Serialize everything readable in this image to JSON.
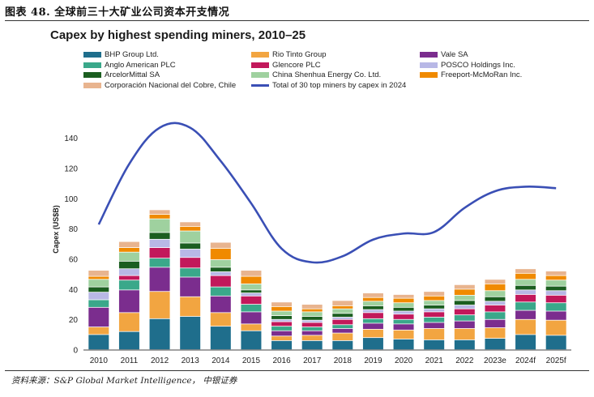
{
  "figure_label": "图表 48. 全球前三十大矿业公司资本开支情况",
  "source_note": "资料来源：S&P Global Market Intelligence， 中银证券",
  "chart_data": {
    "type": "bar",
    "stacked": true,
    "title": "Capex by highest spending miners, 2010–25",
    "xlabel": "",
    "ylabel": "Capex (US$B)",
    "ylim": [
      0,
      150
    ],
    "yticks": [
      0,
      20,
      40,
      60,
      80,
      100,
      120,
      140
    ],
    "grid": false,
    "legend_position": "top",
    "categories": [
      "2010",
      "2011",
      "2012",
      "2013",
      "2014",
      "2015",
      "2016",
      "2017",
      "2018",
      "2019",
      "2020",
      "2021",
      "2022",
      "2023e",
      "2024f",
      "2025f"
    ],
    "series": [
      {
        "name": "BHP Group Ltd.",
        "color": "#1f6e8c",
        "values": [
          10,
          12,
          20.5,
          22,
          15.5,
          12.5,
          6,
          6,
          6,
          8,
          7,
          6.5,
          6.5,
          7.5,
          10,
          9.5
        ]
      },
      {
        "name": "Rio Tinto Group",
        "color": "#f2a541",
        "values": [
          5,
          12.5,
          18,
          13,
          9,
          4.5,
          3,
          3.5,
          5,
          5.5,
          6,
          7.5,
          7.5,
          7,
          10,
          10
        ]
      },
      {
        "name": "Vale SA",
        "color": "#7b2d8e",
        "values": [
          13,
          15,
          16,
          13,
          11,
          8,
          3.5,
          3,
          3,
          4,
          4,
          4,
          5,
          5.5,
          6,
          6
        ]
      },
      {
        "name": "Anglo American PLC",
        "color": "#3aa88a",
        "values": [
          5,
          6.5,
          6,
          6,
          6,
          5,
          3,
          2.5,
          2.5,
          3,
          3,
          3.5,
          4,
          5,
          5.5,
          5.5
        ]
      },
      {
        "name": "Glencore PLC",
        "color": "#c2185b",
        "values": [
          0,
          3,
          7,
          7,
          7.5,
          5.5,
          3,
          3,
          3.5,
          4,
          3.5,
          3.5,
          4,
          4.5,
          5,
          5
        ]
      },
      {
        "name": "POSCO Holdings Inc.",
        "color": "#b8b8e6",
        "values": [
          5,
          4.5,
          5.5,
          5.5,
          2.5,
          2,
          1.5,
          1.5,
          1.5,
          2,
          2,
          2,
          2.5,
          2.5,
          3,
          3
        ]
      },
      {
        "name": "ArcelorMittal SA",
        "color": "#1b5e20",
        "values": [
          3.5,
          5,
          4.5,
          4,
          3,
          2,
          2.5,
          2.5,
          2.5,
          2.5,
          2.5,
          2.5,
          3,
          3,
          3,
          3
        ]
      },
      {
        "name": "China Shenhua Energy Co. Ltd.",
        "color": "#9fd19f",
        "values": [
          5,
          6,
          9,
          8,
          5,
          4,
          3,
          3,
          3,
          3,
          3,
          3,
          3.5,
          4,
          4,
          4
        ]
      },
      {
        "name": "Freeport-McMoRan Inc.",
        "color": "#f08a00",
        "values": [
          2,
          3,
          3,
          3,
          7.5,
          5,
          3,
          2,
          2,
          2.5,
          3,
          3,
          4,
          4.5,
          4,
          3
        ]
      },
      {
        "name": "Corporación Nacional del Cobre, Chile",
        "color": "#e8b48f",
        "values": [
          4,
          4,
          3,
          3,
          4,
          4,
          3,
          3,
          3.5,
          3,
          2.5,
          3,
          3,
          3,
          3,
          3
        ]
      }
    ],
    "line_series": {
      "name": "Total of 30 top miners by capex in 2024",
      "color": "#3a4fb5",
      "values": [
        83,
        123,
        147,
        147,
        125,
        97,
        67,
        58,
        62,
        73,
        77,
        78,
        94,
        105,
        108,
        107
      ]
    }
  }
}
